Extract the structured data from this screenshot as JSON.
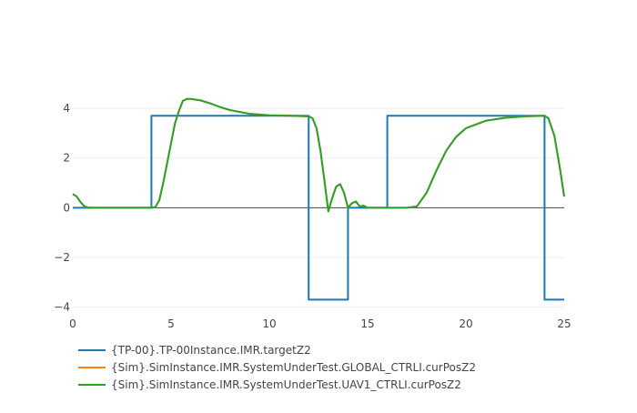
{
  "chart_data": {
    "type": "line",
    "title": "",
    "xlabel": "",
    "ylabel": "",
    "xlim": [
      0,
      25
    ],
    "ylim": [
      -4.2,
      4.7
    ],
    "x_ticks": [
      0,
      5,
      10,
      15,
      20,
      25
    ],
    "x_tick_labels": [
      "0",
      "5",
      "10",
      "15",
      "20",
      "25"
    ],
    "y_ticks": [
      -4,
      -2,
      0,
      2,
      4
    ],
    "y_tick_labels": [
      "−4",
      "−2",
      "0",
      "2",
      "4"
    ],
    "grid": true,
    "legend_position": "bottom-left",
    "series": [
      {
        "name": "{TP-00}.TP-00Instance.IMR.targetZ2",
        "color": "#1f77b4",
        "shape": "step",
        "points": [
          [
            0,
            0
          ],
          [
            4,
            0
          ],
          [
            4,
            3.7
          ],
          [
            12,
            3.7
          ],
          [
            12,
            -3.7
          ],
          [
            14,
            -3.7
          ],
          [
            14,
            0
          ],
          [
            16,
            0
          ],
          [
            16,
            3.7
          ],
          [
            24,
            3.7
          ],
          [
            24,
            -3.7
          ],
          [
            25,
            -3.7
          ]
        ]
      },
      {
        "name": "{Sim}.SimInstance.IMR.SystemUnderTest.GLOBAL_CTRLI.curPosZ2",
        "color": "#ff7f0e",
        "points": [
          [
            0,
            0.55
          ],
          [
            0.2,
            0.45
          ],
          [
            0.4,
            0.22
          ],
          [
            0.6,
            0.05
          ],
          [
            0.8,
            0.0
          ],
          [
            1.2,
            0.0
          ],
          [
            4,
            0.0
          ],
          [
            4.2,
            0.02
          ],
          [
            4.4,
            0.3
          ],
          [
            4.6,
            1.0
          ],
          [
            4.8,
            1.8
          ],
          [
            5.0,
            2.6
          ],
          [
            5.2,
            3.4
          ],
          [
            5.4,
            3.9
          ],
          [
            5.6,
            4.3
          ],
          [
            5.8,
            4.38
          ],
          [
            6.0,
            4.38
          ],
          [
            6.5,
            4.32
          ],
          [
            7.0,
            4.2
          ],
          [
            7.5,
            4.05
          ],
          [
            8.0,
            3.93
          ],
          [
            9.0,
            3.78
          ],
          [
            10.0,
            3.72
          ],
          [
            11.0,
            3.7
          ],
          [
            12.0,
            3.68
          ],
          [
            12.2,
            3.6
          ],
          [
            12.4,
            3.2
          ],
          [
            12.6,
            2.3
          ],
          [
            12.8,
            1.1
          ],
          [
            13.0,
            -0.15
          ],
          [
            13.2,
            0.4
          ],
          [
            13.4,
            0.85
          ],
          [
            13.6,
            0.95
          ],
          [
            13.8,
            0.6
          ],
          [
            14.0,
            0.0
          ],
          [
            14.2,
            0.18
          ],
          [
            14.4,
            0.25
          ],
          [
            14.6,
            0.05
          ],
          [
            14.8,
            0.08
          ],
          [
            15.0,
            0.0
          ],
          [
            16.0,
            0.0
          ],
          [
            17.0,
            0.0
          ],
          [
            17.5,
            0.05
          ],
          [
            18.0,
            0.6
          ],
          [
            18.5,
            1.5
          ],
          [
            19.0,
            2.3
          ],
          [
            19.5,
            2.85
          ],
          [
            20.0,
            3.2
          ],
          [
            21.0,
            3.5
          ],
          [
            22.0,
            3.62
          ],
          [
            23.0,
            3.68
          ],
          [
            24.0,
            3.7
          ],
          [
            24.2,
            3.6
          ],
          [
            24.5,
            2.9
          ],
          [
            24.8,
            1.5
          ],
          [
            25.0,
            0.45
          ]
        ]
      },
      {
        "name": "{Sim}.SimInstance.IMR.SystemUnderTest.UAV1_CTRLI.curPosZ2",
        "color": "#2ca02c",
        "points": [
          [
            0,
            0.55
          ],
          [
            0.2,
            0.45
          ],
          [
            0.4,
            0.22
          ],
          [
            0.6,
            0.05
          ],
          [
            0.8,
            0.0
          ],
          [
            1.2,
            0.0
          ],
          [
            4,
            0.0
          ],
          [
            4.2,
            0.02
          ],
          [
            4.4,
            0.3
          ],
          [
            4.6,
            1.0
          ],
          [
            4.8,
            1.8
          ],
          [
            5.0,
            2.6
          ],
          [
            5.2,
            3.4
          ],
          [
            5.4,
            3.9
          ],
          [
            5.6,
            4.3
          ],
          [
            5.8,
            4.38
          ],
          [
            6.0,
            4.38
          ],
          [
            6.5,
            4.32
          ],
          [
            7.0,
            4.2
          ],
          [
            7.5,
            4.05
          ],
          [
            8.0,
            3.93
          ],
          [
            9.0,
            3.78
          ],
          [
            10.0,
            3.72
          ],
          [
            11.0,
            3.7
          ],
          [
            12.0,
            3.68
          ],
          [
            12.2,
            3.6
          ],
          [
            12.4,
            3.2
          ],
          [
            12.6,
            2.3
          ],
          [
            12.8,
            1.1
          ],
          [
            13.0,
            -0.15
          ],
          [
            13.2,
            0.4
          ],
          [
            13.4,
            0.85
          ],
          [
            13.6,
            0.95
          ],
          [
            13.8,
            0.6
          ],
          [
            14.0,
            0.0
          ],
          [
            14.2,
            0.18
          ],
          [
            14.4,
            0.25
          ],
          [
            14.6,
            0.05
          ],
          [
            14.8,
            0.08
          ],
          [
            15.0,
            0.0
          ],
          [
            16.0,
            0.0
          ],
          [
            17.0,
            0.0
          ],
          [
            17.5,
            0.05
          ],
          [
            18.0,
            0.6
          ],
          [
            18.5,
            1.5
          ],
          [
            19.0,
            2.3
          ],
          [
            19.5,
            2.85
          ],
          [
            20.0,
            3.2
          ],
          [
            21.0,
            3.5
          ],
          [
            22.0,
            3.62
          ],
          [
            23.0,
            3.68
          ],
          [
            24.0,
            3.7
          ],
          [
            24.2,
            3.6
          ],
          [
            24.5,
            2.9
          ],
          [
            24.8,
            1.5
          ],
          [
            25.0,
            0.45
          ]
        ]
      }
    ]
  }
}
